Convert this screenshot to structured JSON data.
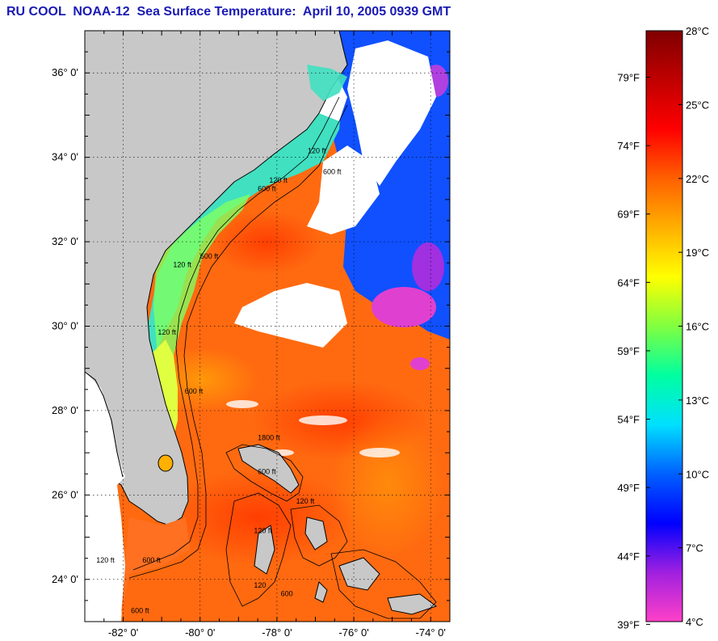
{
  "title": "RU COOL  NOAA-12  Sea Surface Temperature:  April 10, 2005 0939 GMT",
  "map": {
    "lon_range": [
      -83.0,
      -73.5
    ],
    "lat_range": [
      23.0,
      37.0
    ],
    "lat_ticks": [
      {
        "value": 36,
        "label": "36° 0'"
      },
      {
        "value": 34,
        "label": "34° 0'"
      },
      {
        "value": 32,
        "label": "32° 0'"
      },
      {
        "value": 30,
        "label": "30° 0'"
      },
      {
        "value": 28,
        "label": "28° 0'"
      },
      {
        "value": 26,
        "label": "26° 0'"
      },
      {
        "value": 24,
        "label": "24° 0'"
      }
    ],
    "lon_ticks": [
      {
        "value": -82,
        "label": "-82° 0'"
      },
      {
        "value": -80,
        "label": "-80° 0'"
      },
      {
        "value": -78,
        "label": "-78° 0'"
      },
      {
        "value": -76,
        "label": "-76° 0'"
      },
      {
        "value": -74,
        "label": "-74° 0'"
      }
    ],
    "isobath_labels": [
      {
        "text": "120 ft",
        "lon": -78.2,
        "lat": 33.4
      },
      {
        "text": "600 ft",
        "lon": -78.5,
        "lat": 33.2
      },
      {
        "text": "120 ft",
        "lon": -77.2,
        "lat": 34.1
      },
      {
        "text": "600 ft",
        "lon": -76.8,
        "lat": 33.6
      },
      {
        "text": "120 ft",
        "lon": -80.7,
        "lat": 31.4
      },
      {
        "text": "600 ft",
        "lon": -80.0,
        "lat": 31.6
      },
      {
        "text": "120 ft",
        "lon": -81.1,
        "lat": 29.8
      },
      {
        "text": "600 ft",
        "lon": -80.4,
        "lat": 28.4
      },
      {
        "text": "1800 ft",
        "lon": -78.5,
        "lat": 27.3
      },
      {
        "text": "600 ft",
        "lon": -78.5,
        "lat": 26.5
      },
      {
        "text": "120 ft",
        "lon": -77.5,
        "lat": 25.8
      },
      {
        "text": "120 ft",
        "lon": -78.6,
        "lat": 25.1
      },
      {
        "text": "120 ft",
        "lon": -82.7,
        "lat": 24.4
      },
      {
        "text": "600 ft",
        "lon": -81.5,
        "lat": 24.4
      },
      {
        "text": "120",
        "lon": -78.6,
        "lat": 23.8
      },
      {
        "text": "600",
        "lon": -77.9,
        "lat": 23.6
      },
      {
        "text": "600 ft",
        "lon": -81.8,
        "lat": 23.2
      }
    ]
  },
  "colorbar": {
    "celsius_range": [
      4,
      28
    ],
    "celsius_labels": [
      "28°C",
      "25°C",
      "22°C",
      "19°C",
      "16°C",
      "13°C",
      "10°C",
      "7°C",
      "4°C"
    ],
    "celsius_values": [
      28,
      25,
      22,
      19,
      16,
      13,
      10,
      7,
      4
    ],
    "fahrenheit_labels": [
      "79°F",
      "74°F",
      "69°F",
      "64°F",
      "59°F",
      "54°F",
      "49°F",
      "44°F",
      "39°F"
    ],
    "fahrenheit_values": [
      79,
      74,
      69,
      64,
      59,
      54,
      49,
      44,
      39
    ],
    "colors": [
      "#ff40c8",
      "#a020e0",
      "#0000ff",
      "#0060ff",
      "#00e0ff",
      "#00ffa0",
      "#80ff40",
      "#ffff00",
      "#ffb000",
      "#ff6000",
      "#ff0000",
      "#c00000",
      "#800000"
    ]
  },
  "colors": {
    "title": "#1a1ab4",
    "land": "#c8c8c8",
    "cloud": "#ffffff",
    "warm": "#ff6a10",
    "coastline": "#000000"
  }
}
